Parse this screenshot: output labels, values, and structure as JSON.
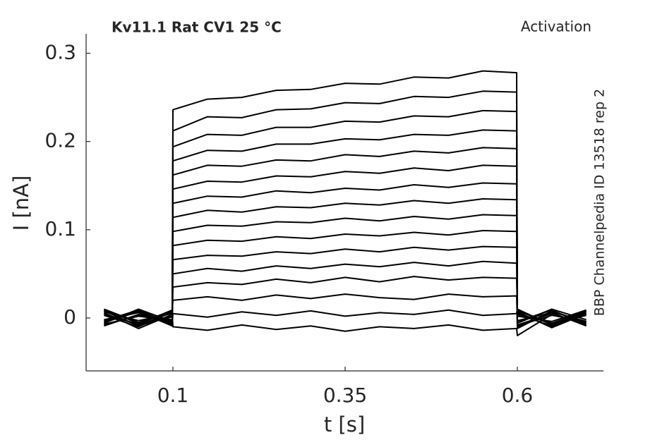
{
  "chart_data": {
    "type": "line",
    "title": "Kv11.1  Rat  CV1  25 °C",
    "annotation": "Activation",
    "side_label": "BBP Channelpedia ID 13518 rep 2",
    "xlabel": "t [s]",
    "ylabel": "I [nA]",
    "color": "#000000",
    "x": [
      0,
      0.05,
      0.099,
      0.1,
      0.15,
      0.2,
      0.25,
      0.3,
      0.35,
      0.4,
      0.45,
      0.5,
      0.55,
      0.599,
      0.6,
      0.65,
      0.7
    ],
    "series": [
      {
        "values": [
          0.006,
          -0.012,
          0.004,
          -0.01,
          -0.014,
          -0.008,
          -0.013,
          -0.009,
          -0.015,
          -0.01,
          -0.012,
          -0.008,
          -0.014,
          -0.012,
          -0.02,
          0.004,
          -0.006
        ]
      },
      {
        "values": [
          -0.004,
          0.008,
          -0.006,
          0.005,
          0.001,
          0.007,
          0.003,
          0.008,
          0.002,
          0.006,
          0.004,
          0.009,
          0.003,
          0.005,
          0.01,
          -0.008,
          0.006
        ]
      },
      {
        "values": [
          0.01,
          -0.005,
          0.008,
          0.02,
          0.024,
          0.02,
          0.026,
          0.022,
          0.027,
          0.023,
          0.021,
          0.027,
          0.024,
          0.025,
          -0.01,
          0.007,
          -0.004
        ]
      },
      {
        "values": [
          -0.008,
          0.003,
          -0.002,
          0.035,
          0.04,
          0.038,
          0.044,
          0.04,
          0.046,
          0.041,
          0.047,
          0.043,
          0.046,
          0.045,
          0.006,
          -0.01,
          0.008
        ]
      },
      {
        "values": [
          0.004,
          -0.007,
          0.009,
          0.05,
          0.056,
          0.053,
          0.059,
          0.056,
          0.061,
          0.058,
          0.063,
          0.059,
          0.064,
          0.062,
          -0.004,
          0.009,
          -0.008
        ]
      },
      {
        "values": [
          -0.006,
          0.01,
          -0.004,
          0.066,
          0.071,
          0.07,
          0.075,
          0.073,
          0.078,
          0.075,
          0.08,
          0.077,
          0.081,
          0.08,
          0.008,
          -0.006,
          0.004
        ]
      },
      {
        "values": [
          0.008,
          -0.009,
          0.002,
          0.082,
          0.088,
          0.087,
          0.092,
          0.09,
          0.095,
          0.093,
          0.097,
          0.094,
          0.099,
          0.098,
          -0.006,
          0.01,
          -0.002
        ]
      },
      {
        "values": [
          -0.002,
          0.006,
          -0.008,
          0.098,
          0.105,
          0.104,
          0.109,
          0.108,
          0.113,
          0.11,
          0.115,
          0.112,
          0.117,
          0.116,
          0.004,
          -0.009,
          0.007
        ]
      },
      {
        "values": [
          0.007,
          -0.003,
          0.005,
          0.114,
          0.122,
          0.12,
          0.126,
          0.125,
          0.13,
          0.128,
          0.133,
          0.13,
          0.135,
          0.134,
          -0.008,
          0.005,
          -0.007
        ]
      },
      {
        "values": [
          -0.009,
          0.004,
          -0.005,
          0.13,
          0.138,
          0.137,
          0.144,
          0.142,
          0.147,
          0.145,
          0.151,
          0.148,
          0.153,
          0.152,
          0.002,
          -0.004,
          0.009
        ]
      },
      {
        "values": [
          0.003,
          -0.01,
          0.007,
          0.146,
          0.155,
          0.154,
          0.161,
          0.16,
          0.166,
          0.164,
          0.17,
          0.167,
          0.173,
          0.172,
          -0.012,
          0.008,
          -0.005
        ]
      },
      {
        "values": [
          -0.005,
          0.007,
          -0.009,
          0.162,
          0.173,
          0.172,
          0.179,
          0.178,
          0.185,
          0.183,
          0.189,
          0.187,
          0.193,
          0.192,
          0.009,
          -0.007,
          0.003
        ]
      },
      {
        "values": [
          0.009,
          -0.006,
          0.001,
          0.178,
          0.19,
          0.189,
          0.197,
          0.197,
          0.203,
          0.202,
          0.208,
          0.207,
          0.213,
          0.212,
          -0.003,
          0.006,
          -0.009
        ]
      },
      {
        "values": [
          -0.003,
          0.009,
          -0.007,
          0.194,
          0.208,
          0.207,
          0.216,
          0.216,
          0.223,
          0.222,
          0.229,
          0.228,
          0.235,
          0.234,
          0.007,
          -0.011,
          0.005
        ]
      },
      {
        "values": [
          0.005,
          -0.008,
          0.006,
          0.212,
          0.228,
          0.227,
          0.236,
          0.237,
          0.244,
          0.243,
          0.251,
          0.25,
          0.257,
          0.256,
          -0.009,
          0.003,
          -0.004
        ]
      },
      {
        "values": [
          -0.007,
          0.002,
          -0.003,
          0.236,
          0.248,
          0.25,
          0.258,
          0.259,
          0.266,
          0.265,
          0.273,
          0.272,
          0.28,
          0.278,
          0.005,
          -0.006,
          0.008
        ]
      }
    ],
    "xlim": [
      -0.026,
      0.725
    ],
    "ylim": [
      -0.06,
      0.322
    ],
    "xticks": [
      0.1,
      0.35,
      0.6
    ],
    "yticks": [
      0,
      0.1,
      0.2,
      0.3
    ]
  }
}
